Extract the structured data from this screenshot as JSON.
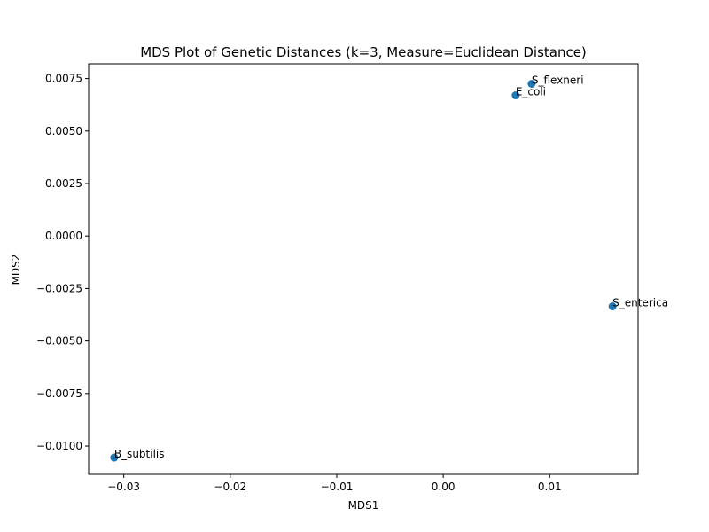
{
  "chart_data": {
    "type": "scatter",
    "title": "MDS Plot of Genetic Distances (k=3, Measure=Euclidean Distance)",
    "xlabel": "MDS1",
    "ylabel": "MDS2",
    "xlim": [
      -0.0333,
      0.0183
    ],
    "ylim": [
      -0.01135,
      0.0082
    ],
    "xticks": [
      -0.03,
      -0.02,
      -0.01,
      0.0,
      0.01
    ],
    "xtick_labels": [
      "−0.03",
      "−0.02",
      "−0.01",
      "0.00",
      "0.01"
    ],
    "yticks": [
      0.0075,
      0.005,
      0.0025,
      0.0,
      -0.0025,
      -0.005,
      -0.0075,
      -0.01
    ],
    "ytick_labels": [
      "0.0075",
      "0.0050",
      "0.0025",
      "0.0000",
      "−0.0025",
      "−0.0050",
      "−0.0075",
      "−0.0100"
    ],
    "grid": false,
    "marker_color": "#1f77b4",
    "points": [
      {
        "label": "S_flexneri",
        "x": 0.0083,
        "y": 0.00725
      },
      {
        "label": "E_coli",
        "x": 0.0068,
        "y": 0.0067
      },
      {
        "label": "S_enterica",
        "x": 0.0159,
        "y": -0.00335
      },
      {
        "label": "B_subtilis",
        "x": -0.0309,
        "y": -0.01055
      }
    ]
  }
}
